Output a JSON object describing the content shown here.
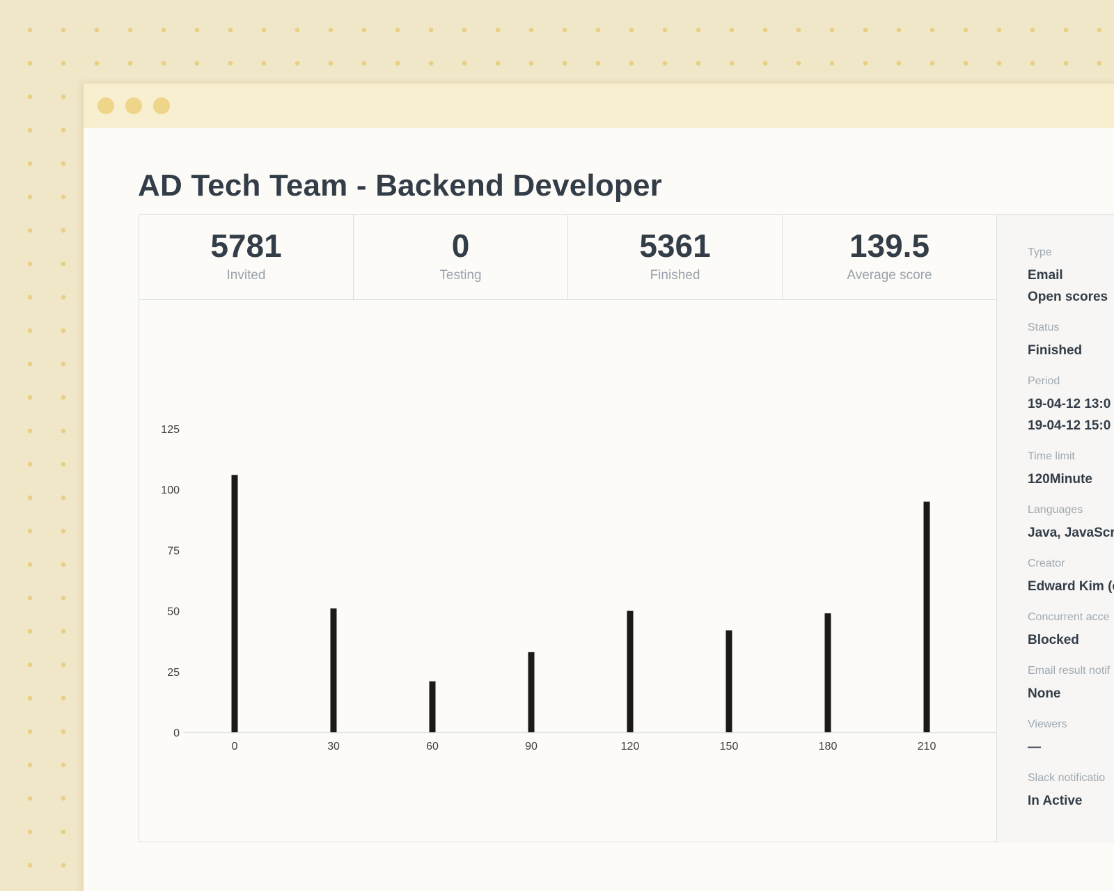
{
  "window": {
    "controls": [
      "close",
      "minimize",
      "maximize"
    ]
  },
  "page": {
    "title": "AD Tech Team - Backend Developer"
  },
  "stats": [
    {
      "value": "5781",
      "label": "Invited"
    },
    {
      "value": "0",
      "label": "Testing"
    },
    {
      "value": "5361",
      "label": "Finished"
    },
    {
      "value": "139.5",
      "label": "Average score"
    }
  ],
  "chart_data": {
    "type": "bar",
    "categories": [
      "0",
      "30",
      "60",
      "90",
      "120",
      "150",
      "180",
      "210"
    ],
    "values": [
      106,
      51,
      21,
      33,
      50,
      42,
      49,
      95
    ],
    "yticks": [
      0,
      25,
      50,
      75,
      100,
      125
    ],
    "ylim": [
      0,
      125
    ],
    "title": "",
    "xlabel": "",
    "ylabel": "",
    "grid": false,
    "bar_color": "#1b1a16"
  },
  "details": [
    {
      "label": "Type",
      "values": [
        "Email",
        "Open scores"
      ]
    },
    {
      "label": "Status",
      "values": [
        "Finished"
      ]
    },
    {
      "label": "Period",
      "values": [
        "19-04-12 13:0",
        "19-04-12 15:0"
      ]
    },
    {
      "label": "Time limit",
      "values": [
        "120Minute"
      ]
    },
    {
      "label": "Languages",
      "values": [
        "Java, JavaScr"
      ]
    },
    {
      "label": "Creator",
      "values": [
        "Edward Kim (e"
      ]
    },
    {
      "label": "Concurrent acce",
      "values": [
        "Blocked"
      ]
    },
    {
      "label": "Email result notif",
      "values": [
        "None"
      ]
    },
    {
      "label": "Viewers",
      "values": [
        "—"
      ]
    },
    {
      "label": "Slack notificatio",
      "values": [
        "In Active"
      ]
    }
  ]
}
